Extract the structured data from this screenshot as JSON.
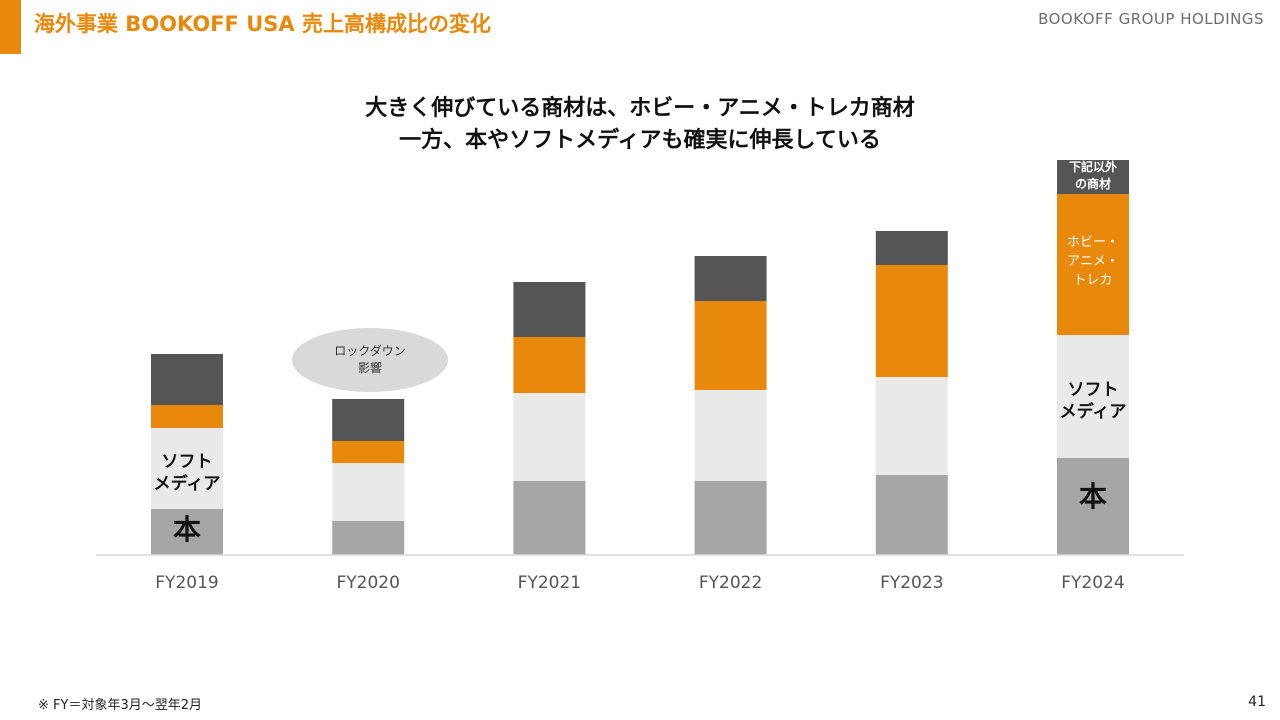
{
  "header": {
    "title": "海外事業 BOOKOFF USA 売上高構成比の変化",
    "brand": "BOOKOFF GROUP HOLDINGS"
  },
  "headline": {
    "line1": "大きく伸びている商材は、ホビー・アニメ・トレカ商材",
    "line2": "一方、本やソフトメディアも確実に伸長している"
  },
  "annotation": {
    "line1": "ロックダウン",
    "line2": "影響"
  },
  "segment_labels": {
    "soft_line1": "ソフト",
    "soft_line2": "メディア",
    "book": "本",
    "other_line1": "下記以外",
    "other_line2": "の商材",
    "hobby_line1": "ホビー・",
    "hobby_line2": "アニメ・",
    "hobby_line3": "トレカ"
  },
  "colors": {
    "book": "#a6a6a6",
    "soft": "#e9e9e9",
    "hobby": "#e8890c",
    "other": "#555555",
    "accent": "#e8890c"
  },
  "chart_data": {
    "type": "bar",
    "stacked": true,
    "categories": [
      "FY2019",
      "FY2020",
      "FY2021",
      "FY2022",
      "FY2023",
      "FY2024"
    ],
    "series": [
      {
        "name": "本",
        "values": [
          46,
          34,
          74,
          74,
          80,
          97
        ]
      },
      {
        "name": "ソフトメディア",
        "values": [
          81,
          58,
          88,
          91,
          98,
          123
        ]
      },
      {
        "name": "ホビー・アニメ・トレカ",
        "values": [
          23,
          22,
          56,
          89,
          112,
          141
        ]
      },
      {
        "name": "下記以外の商材",
        "values": [
          51,
          42,
          55,
          45,
          34,
          34
        ]
      }
    ],
    "ylim": [
      0,
      400
    ],
    "xlabel": "",
    "ylabel": ""
  },
  "footnote": "※ FY＝対象年3月～翌年2月",
  "page_number": "41"
}
